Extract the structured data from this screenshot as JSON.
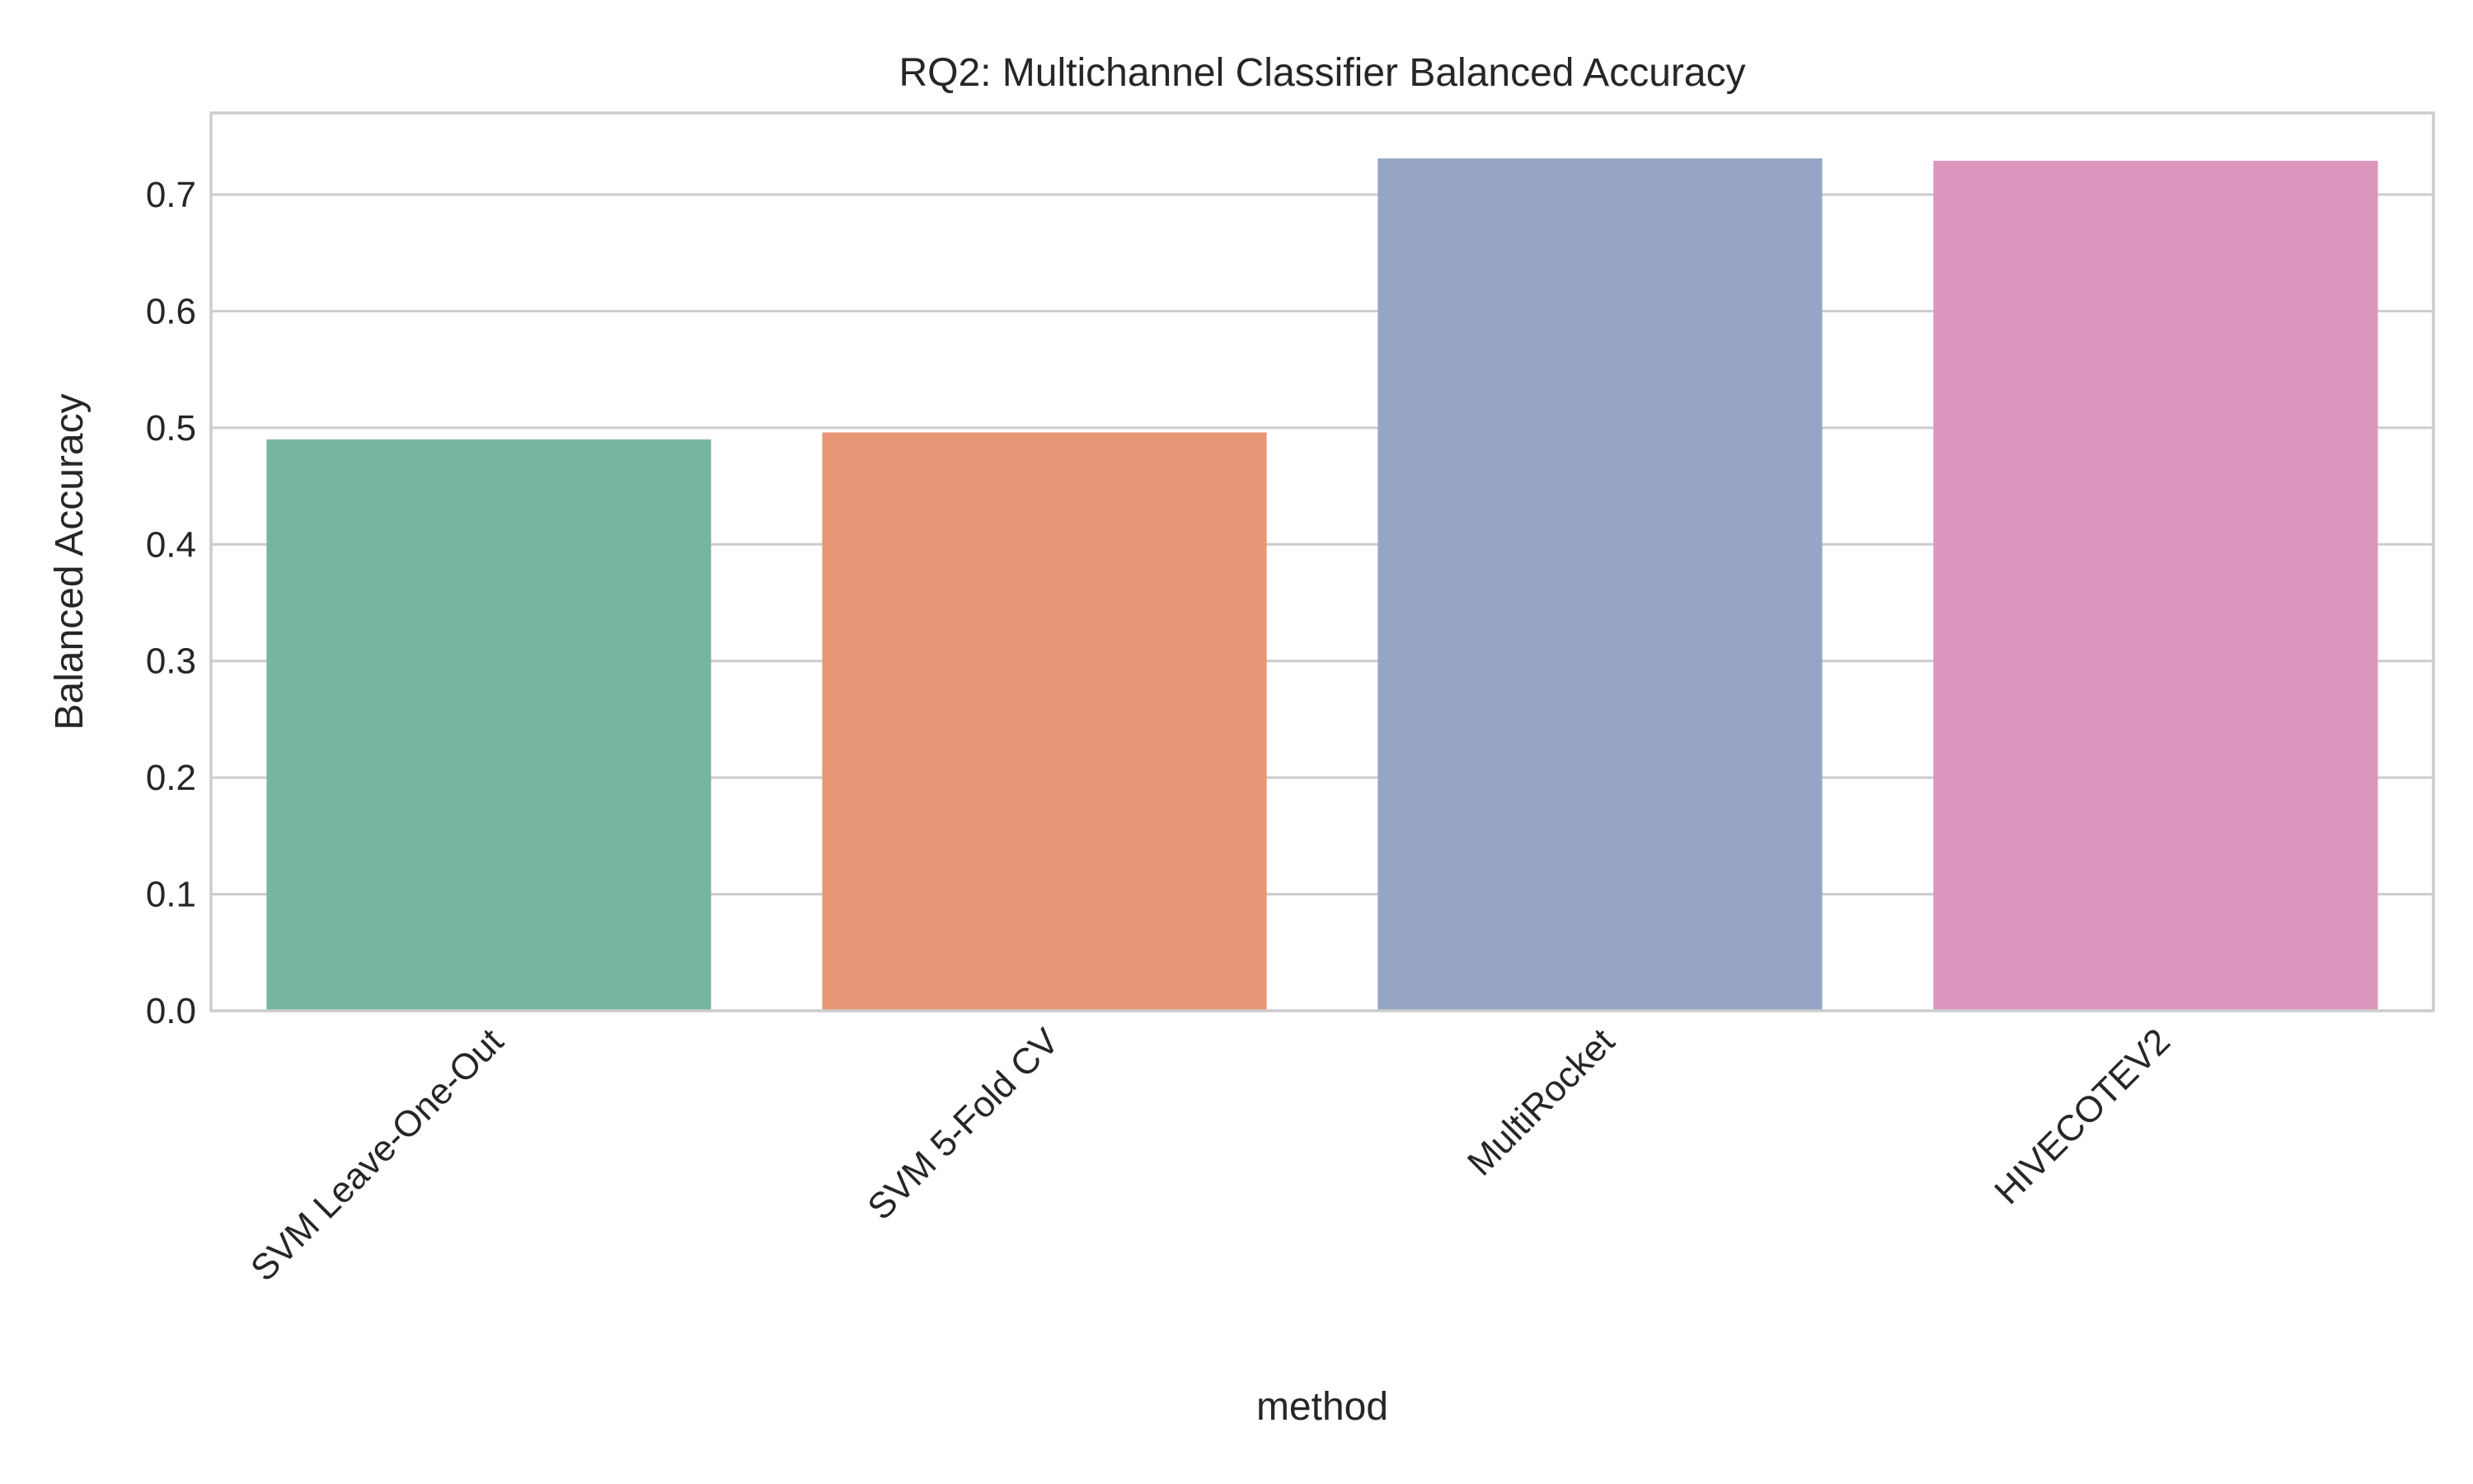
{
  "chart_data": {
    "type": "bar",
    "title": "RQ2: Multichannel Classifier Balanced Accuracy",
    "xlabel": "method",
    "ylabel": "Balanced Accuracy",
    "categories": [
      "SVM Leave-One-Out",
      "SVM 5-Fold CV",
      "MultiRocket",
      "HIVECOTEV2"
    ],
    "values": [
      0.49,
      0.496,
      0.731,
      0.729
    ],
    "colors": [
      "#76b5a2",
      "#e89776",
      "#96a5c4",
      "#dc96be"
    ],
    "ylim": [
      0,
      0.77
    ],
    "yticks": [
      0.0,
      0.1,
      0.2,
      0.3,
      0.4,
      0.5,
      0.6,
      0.7
    ],
    "ytick_labels": [
      "0.0",
      "0.1",
      "0.2",
      "0.3",
      "0.4",
      "0.5",
      "0.6",
      "0.7"
    ],
    "grid": true
  }
}
